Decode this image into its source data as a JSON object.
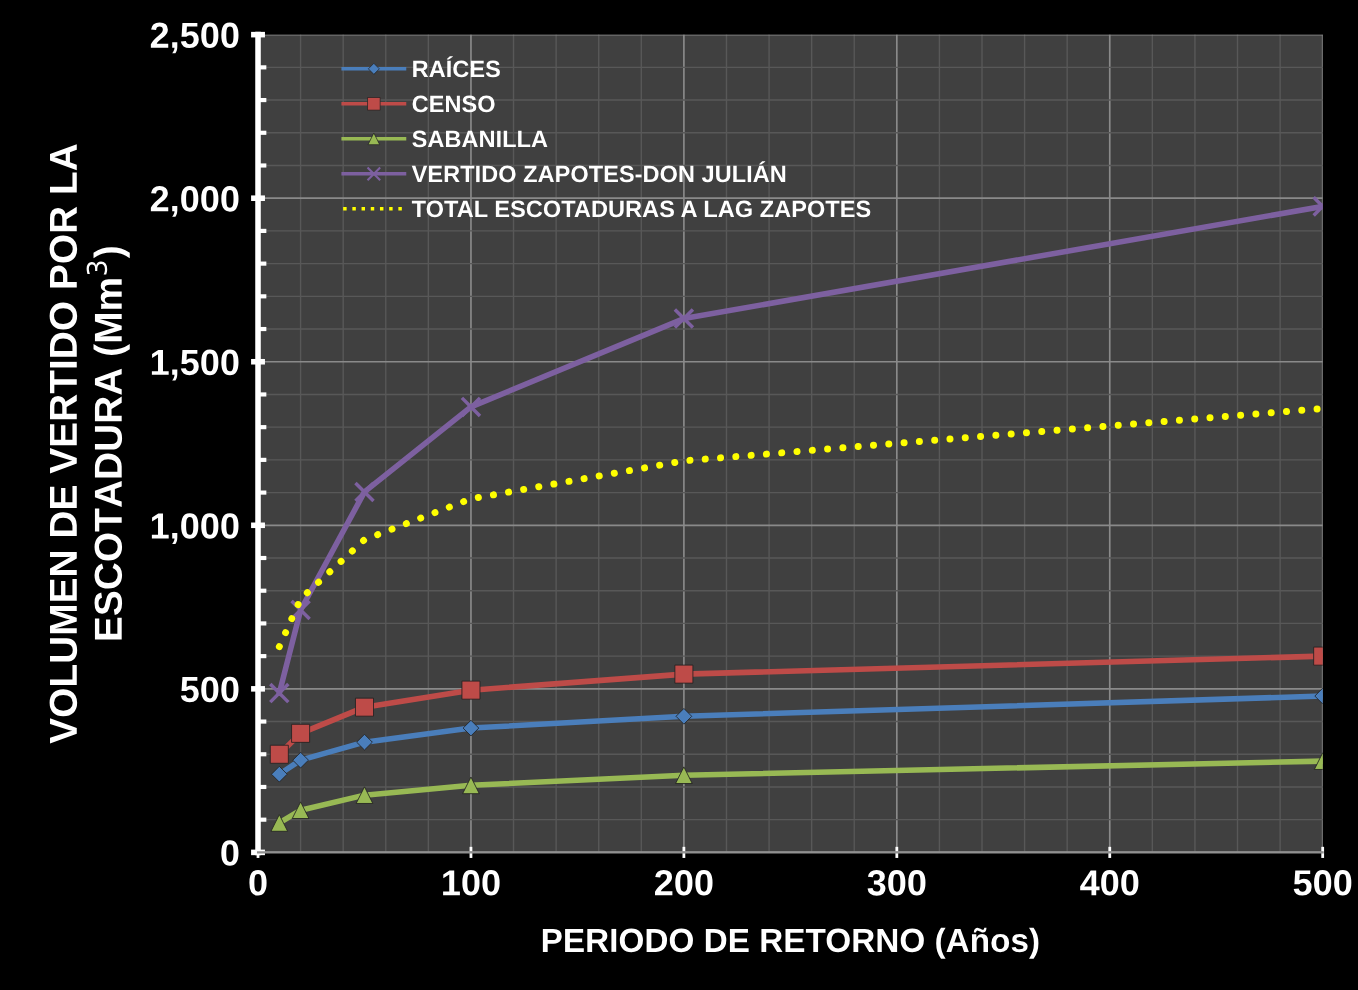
{
  "chart_data": {
    "type": "line",
    "xlabel": "PERIODO DE RETORNO (Años)",
    "ylabel": "VOLUMEN DE VERTIDO POR LA\nESCOTADURA (Mm$^{3}$)",
    "x": [
      10,
      20,
      50,
      100,
      200,
      500
    ],
    "series": [
      {
        "name": "RAÍCES",
        "color": "#4a7ebb",
        "marker": "diamond",
        "line_style": "solid",
        "values": [
          239,
          282,
          337,
          380,
          416,
          478
        ]
      },
      {
        "name": "CENSO",
        "color": "#be4b48",
        "marker": "square",
        "line_style": "solid",
        "values": [
          300,
          364,
          444,
          496,
          545,
          600
        ]
      },
      {
        "name": "SABANILLA",
        "color": "#98b954",
        "marker": "triangle",
        "line_style": "solid",
        "values": [
          90,
          129,
          175,
          205,
          236,
          279
        ]
      },
      {
        "name": "VERTIDO ZAPOTES-DON JULIÁN",
        "color": "#7d60a0",
        "marker": "cross",
        "line_style": "solid",
        "values": [
          487,
          741,
          1102,
          1362,
          1632,
          1975
        ]
      },
      {
        "name": "TOTAL ESCOTADURAS A LAG ZAPOTES",
        "color": "#ffff00",
        "marker": "none",
        "line_style": "dotted",
        "values": [
          629,
          775,
          956,
          1081,
          1197,
          1357
        ]
      }
    ],
    "xlim": [
      0,
      500
    ],
    "xticks": [
      0,
      100,
      200,
      300,
      400,
      500
    ],
    "ylim": [
      0,
      2500
    ],
    "yticks": [
      0,
      {
        "value": 500,
        "label": "500"
      },
      {
        "value": 1000,
        "label": "1,000"
      },
      {
        "value": 1500,
        "label": "1,500"
      },
      {
        "value": 2000,
        "label": "2,000"
      },
      {
        "value": 2500,
        "label": "2,500"
      }
    ],
    "grid": true,
    "legend": "top left"
  }
}
